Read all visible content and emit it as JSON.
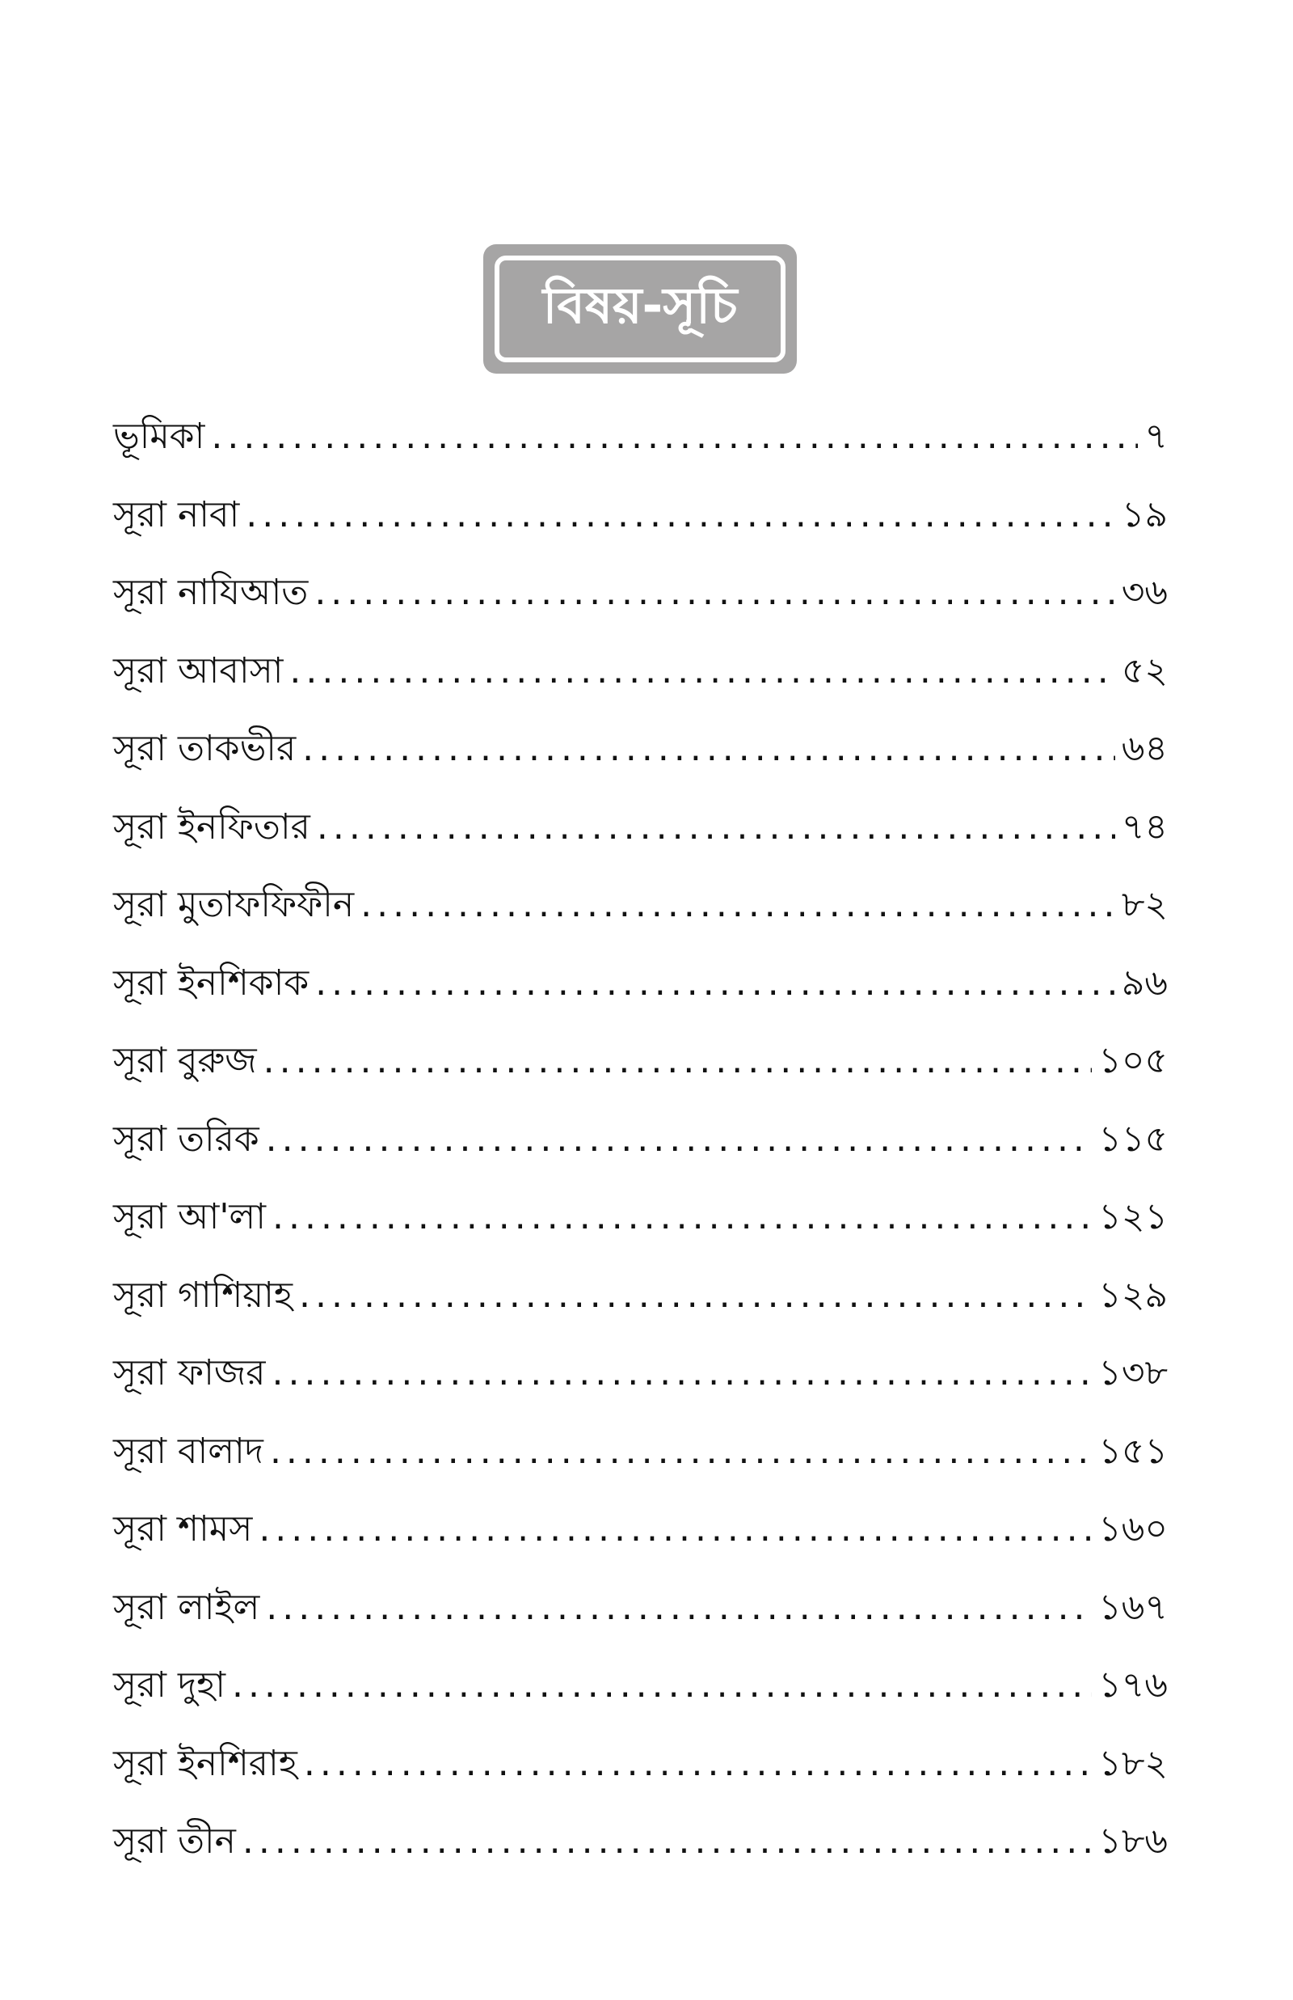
{
  "title": "বিষয়-সূচি",
  "entries": [
    {
      "label": "ভূমিকা",
      "page": "৭"
    },
    {
      "label": "সূরা নাবা",
      "page": "১৯"
    },
    {
      "label": "সূরা নাযিআত",
      "page": "৩৬"
    },
    {
      "label": "সূরা আবাসা",
      "page": "৫২"
    },
    {
      "label": "সূরা তাকভীর",
      "page": "৬৪"
    },
    {
      "label": "সূরা ইনফিতার",
      "page": "৭৪"
    },
    {
      "label": "সূরা মুতাফফিফীন",
      "page": "৮২"
    },
    {
      "label": "সূরা ইনশিকাক",
      "page": "৯৬"
    },
    {
      "label": "সূরা বুরুজ",
      "page": "১০৫"
    },
    {
      "label": "সূরা তরিক",
      "page": "১১৫"
    },
    {
      "label": "সূরা আ'লা",
      "page": "১২১"
    },
    {
      "label": "সূরা গাশিয়াহ",
      "page": "১২৯"
    },
    {
      "label": "সূরা ফাজর",
      "page": "১৩৮"
    },
    {
      "label": "সূরা বালাদ",
      "page": "১৫১"
    },
    {
      "label": "সূরা শামস",
      "page": "১৬০"
    },
    {
      "label": "সূরা লাইল",
      "page": "১৬৭"
    },
    {
      "label": "সূরা দুহা",
      "page": "১৭৬"
    },
    {
      "label": "সূরা ইনশিরাহ",
      "page": "১৮২"
    },
    {
      "label": "সূরা তীন",
      "page": "১৮৬"
    }
  ]
}
